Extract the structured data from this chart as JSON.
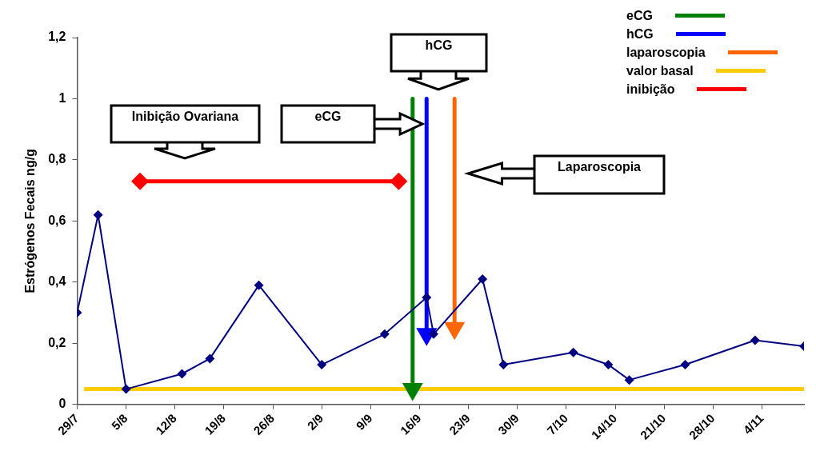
{
  "chart_data": {
    "type": "line",
    "ylabel": "Estrógenos Fecais ng/g",
    "marker": "diamond",
    "legend": "top right",
    "grid": false,
    "xlim": [
      "--07-29",
      "--11-10"
    ],
    "xticks": [
      {
        "value": "--07-29",
        "label": "29/7"
      },
      {
        "value": "--08-05",
        "label": "5/8"
      },
      {
        "value": "--08-12",
        "label": "12/8"
      },
      {
        "value": "--08-19",
        "label": "19/8"
      },
      {
        "value": "--08-26",
        "label": "26/8"
      },
      {
        "value": "--09-02",
        "label": "2/9"
      },
      {
        "value": "--09-09",
        "label": "9/9"
      },
      {
        "value": "--09-16",
        "label": "16/9"
      },
      {
        "value": "--09-23",
        "label": "23/9"
      },
      {
        "value": "--09-30",
        "label": "30/9"
      },
      {
        "value": "--10-07",
        "label": "7/10"
      },
      {
        "value": "--10-14",
        "label": "14/10"
      },
      {
        "value": "--10-21",
        "label": "21/10"
      },
      {
        "value": "--10-28",
        "label": "28/10"
      },
      {
        "value": "--11-04",
        "label": "4/11"
      }
    ],
    "ylim": [
      0,
      1.2
    ],
    "yticks": [
      0,
      {
        "value": 0.2,
        "label": "0,2"
      },
      {
        "value": 0.4,
        "label": "0,4"
      },
      {
        "value": 0.6,
        "label": "0,6"
      },
      {
        "value": 0.8,
        "label": "0,8"
      },
      1,
      {
        "value": 1.2,
        "label": "1,2"
      }
    ],
    "series": [
      {
        "color": "#000080",
        "x": [
          "--07-29",
          "--08-01",
          "--08-05",
          "--08-13",
          "--08-17",
          "--08-24",
          "--09-02",
          "--09-11",
          "--09-17",
          "--09-18",
          "--09-25",
          "--09-28",
          "--10-08",
          "--10-13",
          "--10-16",
          "--10-24",
          "--11-03",
          "--11-10"
        ],
        "values": [
          0.3,
          0.62,
          0.05,
          0.1,
          0.15,
          0.39,
          0.13,
          0.23,
          0.35,
          0.23,
          0.41,
          0.13,
          0.17,
          0.13,
          0.08,
          0.13,
          0.21,
          0.19
        ]
      },
      {
        "name": "eCG",
        "color": "#008000",
        "marker": "triangle",
        "x": [
          "--09-15",
          "--09-15"
        ],
        "values": [
          1.0,
          0.05
        ]
      },
      {
        "name": "hCG",
        "color": "#0000ff",
        "marker": "triangle",
        "x": [
          "--09-17",
          "--09-17"
        ],
        "values": [
          1.0,
          0.23
        ]
      },
      {
        "name": "laparoscopia",
        "color": "#ff6600",
        "marker": "triangle",
        "x": [
          "--09-21",
          "--09-21"
        ],
        "values": [
          1.0,
          0.25
        ]
      },
      {
        "name": "valor basal",
        "color": "#ffcc00",
        "marker": "none",
        "x": [
          "--07-30",
          "--11-10"
        ],
        "values": [
          0.05,
          0.05
        ]
      },
      {
        "name": "inibição",
        "color": "#ff0000",
        "x": [
          "--08-07",
          "--09-13"
        ],
        "values": [
          0.73,
          0.73
        ]
      }
    ],
    "annotations": [
      "Inibição Ovariana",
      "eCG",
      "hCG",
      "Laparoscopia"
    ]
  }
}
